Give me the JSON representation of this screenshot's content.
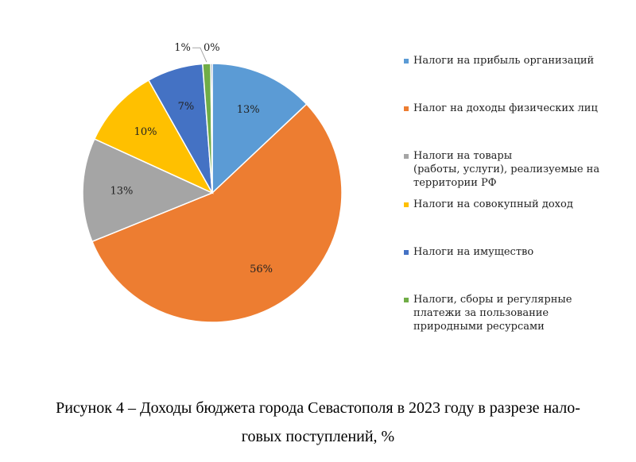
{
  "chart_data": {
    "type": "pie",
    "title": "",
    "legend_position": "right",
    "slices": [
      {
        "label": "Налоги на прибыль организаций",
        "value": 13,
        "display": "13%",
        "color": "#5b9bd5"
      },
      {
        "label": "Налог на доходы физических лиц",
        "value": 56,
        "display": "56%",
        "color": "#ed7d31"
      },
      {
        "label": "Налоги на товары (работы, услуги), реализуемые на территории РФ",
        "value": 13,
        "display": "13%",
        "color": "#a5a5a5"
      },
      {
        "label": "Налоги на совокупный доход",
        "value": 10,
        "display": "10%",
        "color": "#ffc000"
      },
      {
        "label": "Налоги на имущество",
        "value": 7,
        "display": "7%",
        "color": "#4472c4"
      },
      {
        "label": "Налоги, сборы и регулярные платежи за пользование природными ресурсами",
        "value": 1,
        "display": "1%",
        "color": "#70ad47"
      },
      {
        "label": "",
        "value": 0,
        "display": "0%",
        "color": "#264478"
      }
    ]
  },
  "legend": {
    "items": [
      {
        "lines": [
          "Налоги на прибыль организаций"
        ],
        "color": "#5b9bd5"
      },
      {
        "lines": [
          "Налог на доходы физических лиц"
        ],
        "color": "#ed7d31"
      },
      {
        "lines": [
          "Налоги на товары",
          "(работы, услуги), реализуемые на",
          "территории РФ"
        ],
        "color": "#a5a5a5"
      },
      {
        "lines": [
          "Налоги на совокупный доход"
        ],
        "color": "#ffc000"
      },
      {
        "lines": [
          "Налоги на имущество"
        ],
        "color": "#4472c4"
      },
      {
        "lines": [
          "Налоги, сборы и регулярные",
          "платежи за пользование",
          "природными ресурсами"
        ],
        "color": "#70ad47"
      }
    ]
  },
  "caption": {
    "line1": "Рисунок 4 – Доходы бюджета города Севастополя в 2023 году в разрезе нало-",
    "line2": "говых поступлений, %"
  }
}
